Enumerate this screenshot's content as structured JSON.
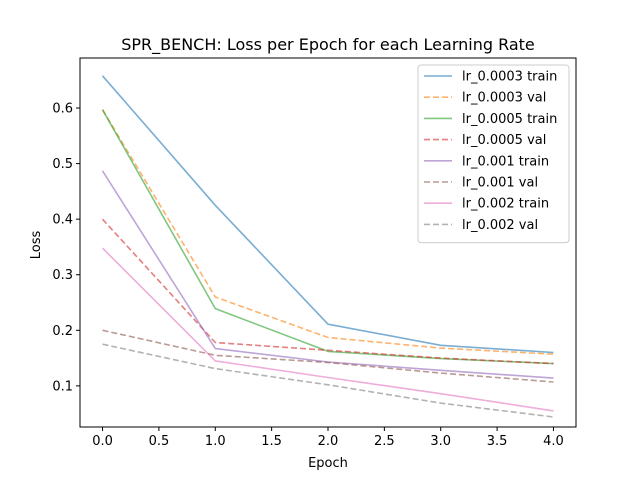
{
  "chart_data": {
    "type": "line",
    "title": "SPR_BENCH: Loss per Epoch for each Learning Rate",
    "xlabel": "Epoch",
    "ylabel": "Loss",
    "xlim": [
      -0.2,
      4.2
    ],
    "ylim": [
      0.026,
      0.69
    ],
    "x": [
      0,
      1,
      2,
      3,
      4
    ],
    "xticks": [
      0.0,
      0.5,
      1.0,
      1.5,
      2.0,
      2.5,
      3.0,
      3.5,
      4.0
    ],
    "xtick_labels": [
      "0.0",
      "0.5",
      "1.0",
      "1.5",
      "2.0",
      "2.5",
      "3.0",
      "3.5",
      "4.0"
    ],
    "yticks": [
      0.1,
      0.2,
      0.3,
      0.4,
      0.5,
      0.6
    ],
    "ytick_labels": [
      "0.1",
      "0.2",
      "0.3",
      "0.4",
      "0.5",
      "0.6"
    ],
    "grid": false,
    "legend_position": "top-right",
    "series": [
      {
        "name": "lr_0.0003 train",
        "color": "#1f77b4",
        "dash": "solid",
        "values": [
          0.658,
          0.425,
          0.211,
          0.173,
          0.16
        ]
      },
      {
        "name": "lr_0.0003 val",
        "color": "#ff7f0e",
        "dash": "dashed",
        "values": [
          0.597,
          0.26,
          0.187,
          0.168,
          0.157
        ]
      },
      {
        "name": "lr_0.0005 train",
        "color": "#2ca02c",
        "dash": "solid",
        "values": [
          0.597,
          0.239,
          0.162,
          0.149,
          0.14
        ]
      },
      {
        "name": "lr_0.0005 val",
        "color": "#d62728",
        "dash": "dashed",
        "values": [
          0.4,
          0.178,
          0.164,
          0.15,
          0.14
        ]
      },
      {
        "name": "lr_0.001 train",
        "color": "#9467bd",
        "dash": "solid",
        "values": [
          0.487,
          0.167,
          0.143,
          0.128,
          0.114
        ]
      },
      {
        "name": "lr_0.001 val",
        "color": "#8c564b",
        "dash": "dashed",
        "values": [
          0.2,
          0.155,
          0.142,
          0.123,
          0.107
        ]
      },
      {
        "name": "lr_0.002 train",
        "color": "#e377c2",
        "dash": "solid",
        "values": [
          0.348,
          0.145,
          0.115,
          0.086,
          0.055
        ]
      },
      {
        "name": "lr_0.002 val",
        "color": "#7f7f7f",
        "dash": "dashed",
        "values": [
          0.175,
          0.131,
          0.102,
          0.069,
          0.044
        ]
      }
    ]
  }
}
